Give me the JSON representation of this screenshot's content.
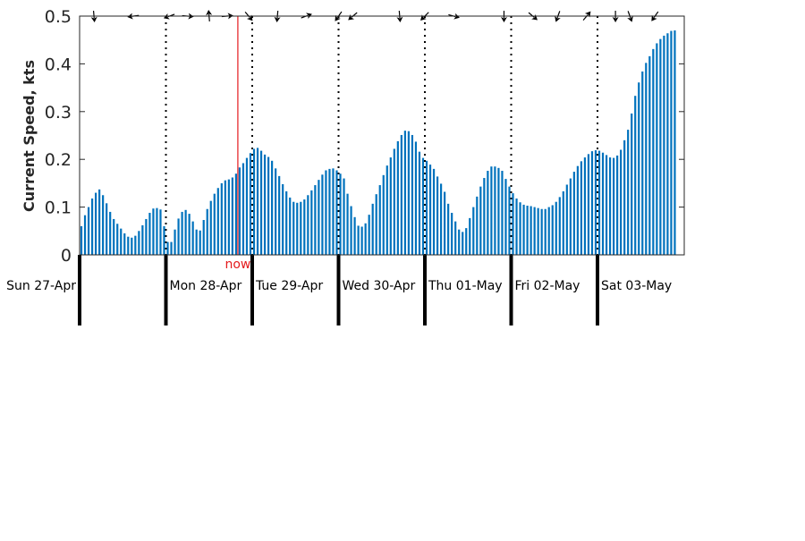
{
  "chart_data": {
    "type": "bar",
    "title": "",
    "xlabel": "",
    "ylabel": "Current Speed, kts",
    "ylim": [
      0,
      0.5
    ],
    "yticks": [
      "0",
      "0.1",
      "0.2",
      "0.3",
      "0.4",
      "0.5"
    ],
    "grid": false,
    "bar_color": "#0072bd",
    "now_color": "#e41a1c",
    "day_labels": [
      "Sun 27-Apr",
      "Mon 28-Apr",
      "Tue 29-Apr",
      "Wed 30-Apr",
      "Thu 01-May",
      "Fri 02-May",
      "Sat 03-May"
    ],
    "now_label": "now",
    "now_position_hours": 44,
    "bar_interval_hours": 1,
    "values": [
      0.06,
      0.083,
      0.1,
      0.118,
      0.13,
      0.137,
      0.125,
      0.108,
      0.09,
      0.075,
      0.065,
      0.055,
      0.045,
      0.038,
      0.036,
      0.04,
      0.05,
      0.062,
      0.075,
      0.088,
      0.097,
      0.098,
      0.095,
      0.06,
      0.027,
      0.027,
      0.053,
      0.076,
      0.09,
      0.094,
      0.086,
      0.07,
      0.053,
      0.051,
      0.073,
      0.096,
      0.113,
      0.128,
      0.14,
      0.15,
      0.156,
      0.158,
      0.162,
      0.17,
      0.183,
      0.192,
      0.203,
      0.213,
      0.222,
      0.224,
      0.218,
      0.21,
      0.205,
      0.197,
      0.181,
      0.165,
      0.148,
      0.133,
      0.12,
      0.111,
      0.109,
      0.111,
      0.116,
      0.125,
      0.135,
      0.146,
      0.157,
      0.168,
      0.177,
      0.18,
      0.181,
      0.177,
      0.17,
      0.16,
      0.128,
      0.102,
      0.079,
      0.061,
      0.059,
      0.066,
      0.084,
      0.107,
      0.127,
      0.146,
      0.167,
      0.187,
      0.204,
      0.222,
      0.238,
      0.251,
      0.26,
      0.259,
      0.251,
      0.237,
      0.216,
      0.203,
      0.197,
      0.189,
      0.18,
      0.164,
      0.149,
      0.132,
      0.107,
      0.088,
      0.07,
      0.053,
      0.048,
      0.056,
      0.077,
      0.1,
      0.122,
      0.143,
      0.161,
      0.176,
      0.185,
      0.185,
      0.182,
      0.176,
      0.159,
      0.143,
      0.129,
      0.118,
      0.11,
      0.105,
      0.103,
      0.102,
      0.1,
      0.098,
      0.096,
      0.096,
      0.1,
      0.104,
      0.111,
      0.121,
      0.133,
      0.147,
      0.16,
      0.174,
      0.186,
      0.196,
      0.204,
      0.211,
      0.217,
      0.219,
      0.218,
      0.214,
      0.209,
      0.204,
      0.203,
      0.208,
      0.22,
      0.24,
      0.262,
      0.296,
      0.333,
      0.361,
      0.384,
      0.402,
      0.416,
      0.431,
      0.443,
      0.452,
      0.459,
      0.464,
      0.469,
      0.47
    ],
    "direction_arrows": [
      {
        "hour": 4,
        "angle": 175
      },
      {
        "hour": 15,
        "angle": 262
      },
      {
        "hour": 25,
        "angle": 250
      },
      {
        "hour": 30,
        "angle": 95
      },
      {
        "hour": 36,
        "angle": 355
      },
      {
        "hour": 41,
        "angle": 85
      },
      {
        "hour": 47,
        "angle": 140
      },
      {
        "hour": 55,
        "angle": 185
      },
      {
        "hour": 63,
        "angle": 70
      },
      {
        "hour": 72,
        "angle": 215
      },
      {
        "hour": 76,
        "angle": 230
      },
      {
        "hour": 89,
        "angle": 175
      },
      {
        "hour": 96,
        "angle": 225
      },
      {
        "hour": 104,
        "angle": 105
      },
      {
        "hour": 118,
        "angle": 180
      },
      {
        "hour": 126,
        "angle": 130
      },
      {
        "hour": 133,
        "angle": 200
      },
      {
        "hour": 141,
        "angle": 40
      },
      {
        "hour": 149,
        "angle": 180
      },
      {
        "hour": 153,
        "angle": 160
      },
      {
        "hour": 160,
        "angle": 215
      }
    ]
  }
}
